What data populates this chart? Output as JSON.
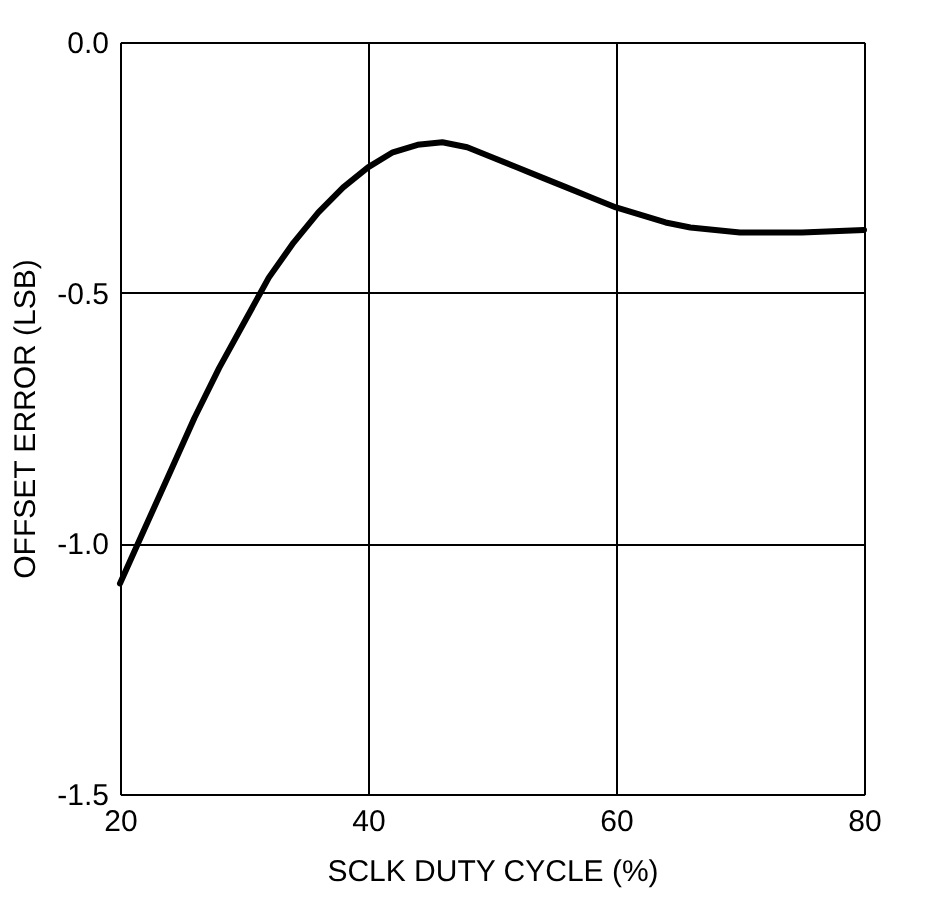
{
  "chart_data": {
    "type": "line",
    "xlabel": "SCLK DUTY CYCLE (%)",
    "ylabel": "OFFSET ERROR (LSB)",
    "x": [
      20,
      22,
      24,
      26,
      28,
      30,
      32,
      34,
      36,
      38,
      40,
      42,
      44,
      46,
      48,
      50,
      52,
      54,
      56,
      58,
      60,
      62,
      64,
      66,
      68,
      70,
      75,
      80
    ],
    "series": [
      {
        "color": "#000000",
        "values": [
          -1.08,
          -0.97,
          -0.86,
          -0.75,
          -0.65,
          -0.56,
          -0.47,
          -0.4,
          -0.34,
          -0.29,
          -0.25,
          -0.22,
          -0.205,
          -0.2,
          -0.21,
          -0.23,
          -0.25,
          -0.27,
          -0.29,
          -0.31,
          -0.33,
          -0.345,
          -0.36,
          -0.37,
          -0.375,
          -0.38,
          -0.38,
          -0.375
        ]
      }
    ],
    "xlim": [
      20,
      80
    ],
    "xticks": [
      20,
      40,
      60,
      80
    ],
    "ylim": [
      -1.5,
      0
    ],
    "yticks": [
      {
        "value": -1.5,
        "label": "-1.5"
      },
      {
        "value": -1.0,
        "label": "-1.0"
      },
      -0.5,
      {
        "value": 0,
        "label": "0.0"
      }
    ],
    "grid": true,
    "marker": "none",
    "line_style": "solid"
  }
}
